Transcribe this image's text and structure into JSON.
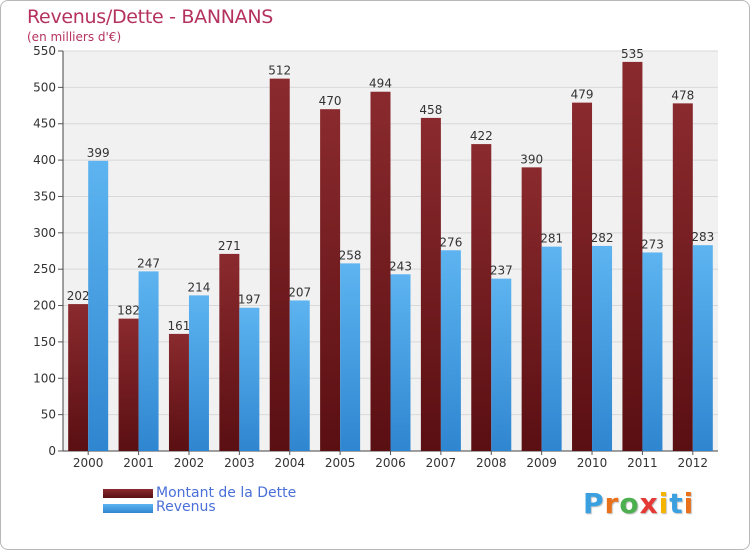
{
  "header": {
    "title": "Revenus/Dette - BANNANS",
    "subtitle": "(en milliers d'€)"
  },
  "legend": {
    "debt_label": "Montant de la Dette",
    "revenue_label": "Revenus"
  },
  "logo": {
    "text": "Proxiti",
    "letters": [
      {
        "char": "P",
        "color": "#3aa0e0"
      },
      {
        "char": "r",
        "color": "#e9711c"
      },
      {
        "char": "o",
        "color": "#4caf50"
      },
      {
        "char": "x",
        "color": "#e53935"
      },
      {
        "char": "i",
        "color": "#f4b400"
      },
      {
        "char": "t",
        "color": "#3aa0e0"
      },
      {
        "char": "i",
        "color": "#e9711c"
      }
    ]
  },
  "colors": {
    "title": "#b5325e",
    "legend_text": "#4a6fd8",
    "debt_top": "#8a2a2e",
    "debt_bottom": "#5a0f12",
    "revenue_top": "#5db4f0",
    "revenue_bottom": "#2f86d0",
    "grid": "#d8d8d8",
    "plot_bg": "#f1f1f1"
  },
  "chart_data": {
    "type": "bar",
    "title": "Revenus/Dette - BANNANS",
    "subtitle": "(en milliers d'€)",
    "categories": [
      "2000",
      "2001",
      "2002",
      "2003",
      "2004",
      "2005",
      "2006",
      "2007",
      "2008",
      "2009",
      "2010",
      "2011",
      "2012"
    ],
    "series": [
      {
        "name": "Montant de la Dette",
        "values": [
          202,
          182,
          161,
          271,
          512,
          470,
          494,
          458,
          422,
          390,
          479,
          535,
          478
        ]
      },
      {
        "name": "Revenus",
        "values": [
          399,
          247,
          214,
          197,
          207,
          258,
          243,
          276,
          237,
          281,
          282,
          273,
          283
        ]
      }
    ],
    "ylim": [
      0,
      550
    ],
    "yticks": [
      0,
      50,
      100,
      150,
      200,
      250,
      300,
      350,
      400,
      450,
      500,
      550
    ],
    "grid": true,
    "legend_position": "bottom-left",
    "data_labels": true
  }
}
